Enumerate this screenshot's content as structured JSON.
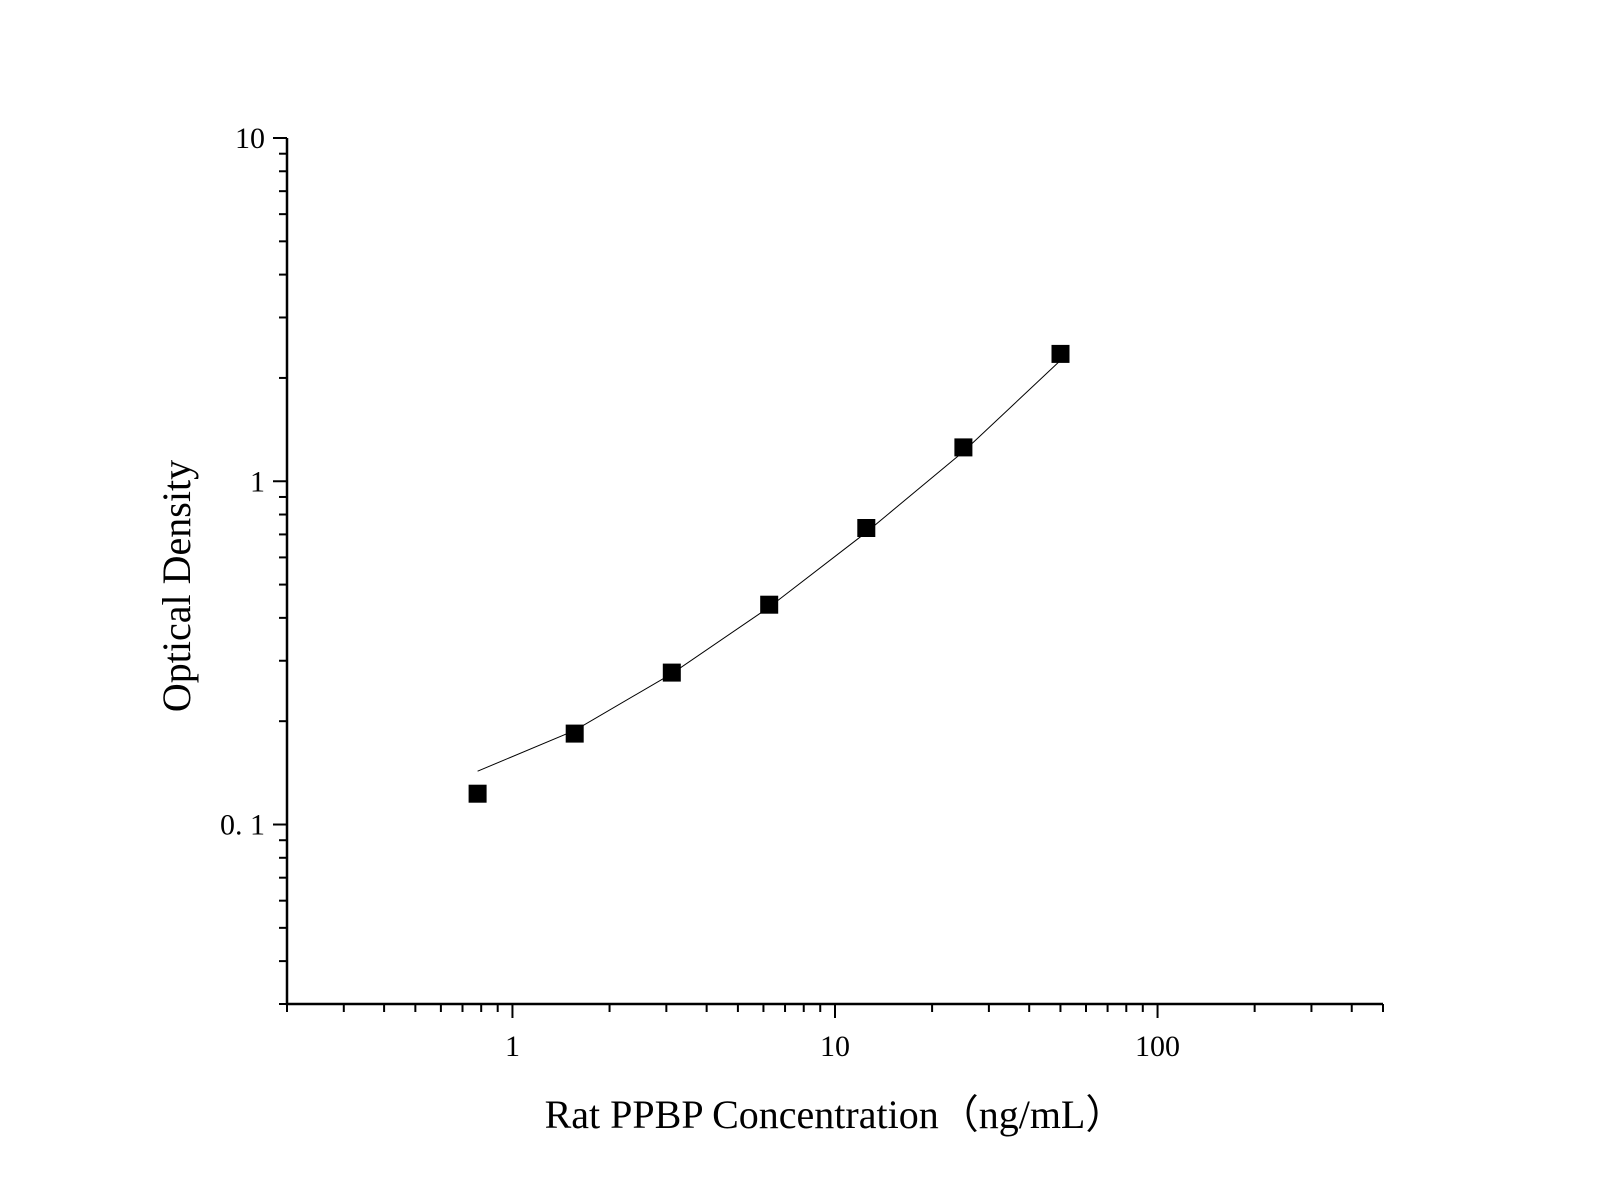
{
  "chart_data": {
    "type": "scatter",
    "title": "",
    "xlabel": "Rat PPBP Concentration（ng/mL）",
    "ylabel": "Optical Density",
    "x_scale": "log",
    "y_scale": "log",
    "xlim": [
      0.2,
      500
    ],
    "ylim": [
      0.03,
      10
    ],
    "x_ticks": [
      {
        "value": 1,
        "label": "1"
      },
      {
        "value": 10,
        "label": "10"
      },
      {
        "value": 100,
        "label": "100"
      }
    ],
    "y_ticks": [
      {
        "value": 0.1,
        "label": "0. 1"
      },
      {
        "value": 1,
        "label": "1"
      },
      {
        "value": 10,
        "label": "10"
      }
    ],
    "grid": false,
    "legend": "none",
    "marker": "square",
    "color": "#000000",
    "points": {
      "x": [
        0.78,
        1.56,
        3.12,
        6.25,
        12.5,
        25,
        50
      ],
      "y": [
        0.123,
        0.184,
        0.277,
        0.437,
        0.731,
        1.255,
        2.35
      ]
    },
    "fit_curve": {
      "x": [
        0.78,
        1.56,
        3.12,
        6.25,
        12.5,
        25,
        50
      ],
      "y": [
        0.143,
        0.188,
        0.275,
        0.43,
        0.71,
        1.22,
        2.25
      ]
    }
  }
}
